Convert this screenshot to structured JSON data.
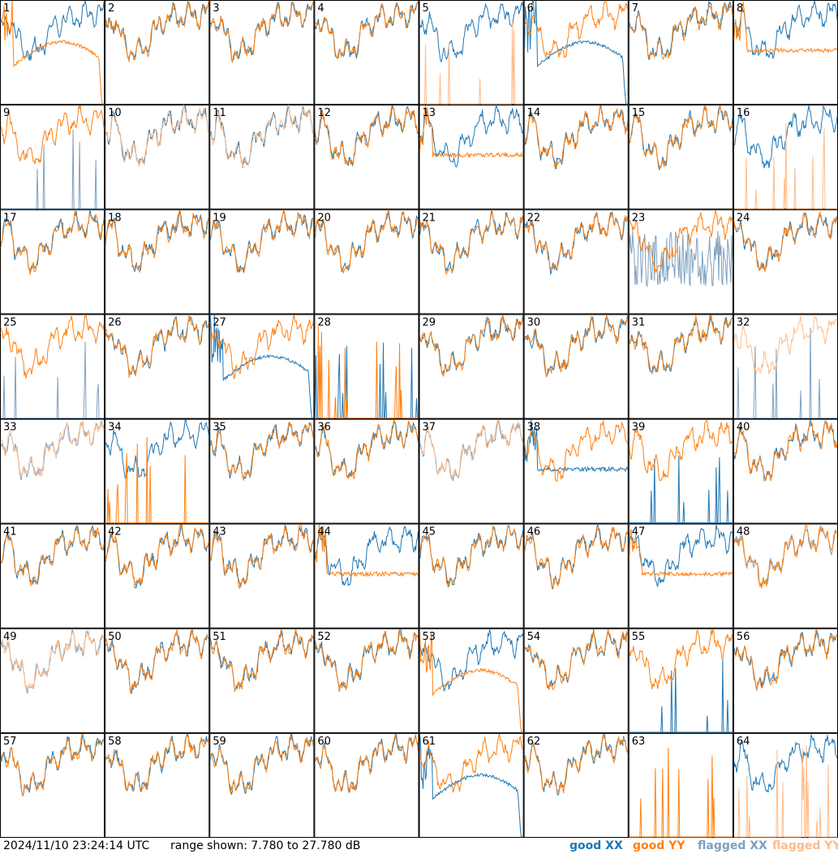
{
  "footer": {
    "timestamp": "2024/11/10 23:24:14 UTC",
    "range": "range shown: 7.780 to 27.780 dB",
    "legend": [
      {
        "label": "good XX",
        "color": "#1f77b4"
      },
      {
        "label": "good YY",
        "color": "#ff7f0e"
      },
      {
        "label": "flagged XX",
        "color": "#7f9fbf"
      },
      {
        "label": "flagged YY",
        "color": "#ffbb88"
      }
    ]
  },
  "chart_data": {
    "type": "line",
    "grid": {
      "rows": 8,
      "cols": 8
    },
    "ylim": [
      7.78,
      27.78
    ],
    "yunit": "dB",
    "series_names": [
      "good XX",
      "good YY",
      "flagged XX",
      "flagged YY"
    ],
    "panels": [
      {
        "label": "1",
        "xx": "good",
        "yy": "good",
        "xx_mode": "spectrum",
        "yy_mode": "dip"
      },
      {
        "label": "2",
        "xx": "good",
        "yy": "good",
        "xx_mode": "spectrum",
        "yy_mode": "spectrum"
      },
      {
        "label": "3",
        "xx": "good",
        "yy": "good",
        "xx_mode": "spectrum",
        "yy_mode": "spectrum"
      },
      {
        "label": "4",
        "xx": "good",
        "yy": "good",
        "xx_mode": "spectrum",
        "yy_mode": "spectrum"
      },
      {
        "label": "5",
        "xx": "good",
        "yy": "flagged",
        "xx_mode": "spectrum",
        "yy_mode": "spikes"
      },
      {
        "label": "6",
        "xx": "good",
        "yy": "good",
        "xx_mode": "dip",
        "yy_mode": "spectrum"
      },
      {
        "label": "7",
        "xx": "good",
        "yy": "good",
        "xx_mode": "spectrum",
        "yy_mode": "spectrum"
      },
      {
        "label": "8",
        "xx": "good",
        "yy": "good",
        "xx_mode": "spectrum",
        "yy_mode": "flat"
      },
      {
        "label": "9",
        "xx": "flagged",
        "yy": "good",
        "xx_mode": "spikes",
        "yy_mode": "spectrum"
      },
      {
        "label": "10",
        "xx": "good",
        "yy": "flagged",
        "xx_mode": "spectrum",
        "yy_mode": "spectrum"
      },
      {
        "label": "11",
        "xx": "good",
        "yy": "flagged",
        "xx_mode": "spectrum",
        "yy_mode": "spectrum"
      },
      {
        "label": "12",
        "xx": "good",
        "yy": "good",
        "xx_mode": "spectrum",
        "yy_mode": "spectrum"
      },
      {
        "label": "13",
        "xx": "good",
        "yy": "good",
        "xx_mode": "spectrum",
        "yy_mode": "flat"
      },
      {
        "label": "14",
        "xx": "good",
        "yy": "good",
        "xx_mode": "spectrum",
        "yy_mode": "spectrum"
      },
      {
        "label": "15",
        "xx": "good",
        "yy": "good",
        "xx_mode": "spectrum",
        "yy_mode": "spectrum"
      },
      {
        "label": "16",
        "xx": "good",
        "yy": "flagged",
        "xx_mode": "spectrum",
        "yy_mode": "spikes"
      },
      {
        "label": "17",
        "xx": "good",
        "yy": "good",
        "xx_mode": "spectrum",
        "yy_mode": "spectrum"
      },
      {
        "label": "18",
        "xx": "good",
        "yy": "good",
        "xx_mode": "spectrum",
        "yy_mode": "spectrum"
      },
      {
        "label": "19",
        "xx": "good",
        "yy": "good",
        "xx_mode": "spectrum",
        "yy_mode": "spectrum"
      },
      {
        "label": "20",
        "xx": "good",
        "yy": "good",
        "xx_mode": "spectrum",
        "yy_mode": "spectrum"
      },
      {
        "label": "21",
        "xx": "good",
        "yy": "good",
        "xx_mode": "spectrum",
        "yy_mode": "spectrum"
      },
      {
        "label": "22",
        "xx": "good",
        "yy": "good",
        "xx_mode": "spectrum",
        "yy_mode": "spectrum"
      },
      {
        "label": "23",
        "xx": "flagged",
        "yy": "good",
        "xx_mode": "noisy",
        "yy_mode": "spectrum"
      },
      {
        "label": "24",
        "xx": "good",
        "yy": "good",
        "xx_mode": "spectrum",
        "yy_mode": "spectrum"
      },
      {
        "label": "25",
        "xx": "flagged",
        "yy": "good",
        "xx_mode": "spikes",
        "yy_mode": "spectrum"
      },
      {
        "label": "26",
        "xx": "good",
        "yy": "good",
        "xx_mode": "spectrum",
        "yy_mode": "spectrum"
      },
      {
        "label": "27",
        "xx": "good",
        "yy": "good",
        "xx_mode": "dip",
        "yy_mode": "spectrum"
      },
      {
        "label": "28",
        "xx": "good",
        "yy": "good",
        "xx_mode": "spikes",
        "yy_mode": "spikes"
      },
      {
        "label": "29",
        "xx": "good",
        "yy": "good",
        "xx_mode": "spectrum",
        "yy_mode": "spectrum"
      },
      {
        "label": "30",
        "xx": "good",
        "yy": "good",
        "xx_mode": "spectrum",
        "yy_mode": "spectrum"
      },
      {
        "label": "31",
        "xx": "good",
        "yy": "good",
        "xx_mode": "spectrum",
        "yy_mode": "spectrum"
      },
      {
        "label": "32",
        "xx": "flagged",
        "yy": "flagged",
        "xx_mode": "spikes",
        "yy_mode": "spectrum"
      },
      {
        "label": "33",
        "xx": "flagged",
        "yy": "flagged",
        "xx_mode": "spectrum",
        "yy_mode": "spectrum"
      },
      {
        "label": "34",
        "xx": "good",
        "yy": "good",
        "xx_mode": "spectrum",
        "yy_mode": "spikes"
      },
      {
        "label": "35",
        "xx": "good",
        "yy": "good",
        "xx_mode": "spectrum",
        "yy_mode": "spectrum"
      },
      {
        "label": "36",
        "xx": "good",
        "yy": "good",
        "xx_mode": "spectrum",
        "yy_mode": "spectrum"
      },
      {
        "label": "37",
        "xx": "flagged",
        "yy": "flagged",
        "xx_mode": "spectrum",
        "yy_mode": "spectrum"
      },
      {
        "label": "38",
        "xx": "good",
        "yy": "good",
        "xx_mode": "flat",
        "yy_mode": "spectrum"
      },
      {
        "label": "39",
        "xx": "good",
        "yy": "good",
        "xx_mode": "spikes",
        "yy_mode": "spectrum"
      },
      {
        "label": "40",
        "xx": "good",
        "yy": "good",
        "xx_mode": "spectrum",
        "yy_mode": "spectrum"
      },
      {
        "label": "41",
        "xx": "good",
        "yy": "good",
        "xx_mode": "spectrum",
        "yy_mode": "spectrum"
      },
      {
        "label": "42",
        "xx": "good",
        "yy": "good",
        "xx_mode": "spectrum",
        "yy_mode": "spectrum"
      },
      {
        "label": "43",
        "xx": "good",
        "yy": "good",
        "xx_mode": "spectrum",
        "yy_mode": "spectrum"
      },
      {
        "label": "44",
        "xx": "good",
        "yy": "good",
        "xx_mode": "spectrum",
        "yy_mode": "flat"
      },
      {
        "label": "45",
        "xx": "good",
        "yy": "good",
        "xx_mode": "spectrum",
        "yy_mode": "spectrum"
      },
      {
        "label": "46",
        "xx": "good",
        "yy": "good",
        "xx_mode": "spectrum",
        "yy_mode": "spectrum"
      },
      {
        "label": "47",
        "xx": "good",
        "yy": "good",
        "xx_mode": "spectrum",
        "yy_mode": "flat"
      },
      {
        "label": "48",
        "xx": "flagged",
        "yy": "good",
        "xx_mode": "spectrum",
        "yy_mode": "spectrum"
      },
      {
        "label": "49",
        "xx": "flagged",
        "yy": "flagged",
        "xx_mode": "spectrum",
        "yy_mode": "spectrum"
      },
      {
        "label": "50",
        "xx": "good",
        "yy": "good",
        "xx_mode": "spectrum",
        "yy_mode": "spectrum"
      },
      {
        "label": "51",
        "xx": "good",
        "yy": "good",
        "xx_mode": "spectrum",
        "yy_mode": "spectrum"
      },
      {
        "label": "52",
        "xx": "good",
        "yy": "good",
        "xx_mode": "spectrum",
        "yy_mode": "spectrum"
      },
      {
        "label": "53",
        "xx": "good",
        "yy": "good",
        "xx_mode": "spectrum",
        "yy_mode": "dip"
      },
      {
        "label": "54",
        "xx": "good",
        "yy": "good",
        "xx_mode": "spectrum",
        "yy_mode": "spectrum"
      },
      {
        "label": "55",
        "xx": "good",
        "yy": "good",
        "xx_mode": "spikes",
        "yy_mode": "spectrum"
      },
      {
        "label": "56",
        "xx": "good",
        "yy": "good",
        "xx_mode": "spectrum",
        "yy_mode": "spectrum"
      },
      {
        "label": "57",
        "xx": "good",
        "yy": "good",
        "xx_mode": "spectrum",
        "yy_mode": "spectrum"
      },
      {
        "label": "58",
        "xx": "good",
        "yy": "good",
        "xx_mode": "spectrum",
        "yy_mode": "spectrum"
      },
      {
        "label": "59",
        "xx": "good",
        "yy": "good",
        "xx_mode": "spectrum",
        "yy_mode": "spectrum"
      },
      {
        "label": "60",
        "xx": "good",
        "yy": "good",
        "xx_mode": "spectrum",
        "yy_mode": "spectrum"
      },
      {
        "label": "61",
        "xx": "good",
        "yy": "good",
        "xx_mode": "dip",
        "yy_mode": "spectrum"
      },
      {
        "label": "62",
        "xx": "good",
        "yy": "good",
        "xx_mode": "spectrum",
        "yy_mode": "spectrum"
      },
      {
        "label": "63",
        "xx": "good",
        "yy": "good",
        "xx_mode": "none",
        "yy_mode": "spikes"
      },
      {
        "label": "64",
        "xx": "good",
        "yy": "flagged",
        "xx_mode": "spectrum",
        "yy_mode": "spikes"
      }
    ]
  }
}
